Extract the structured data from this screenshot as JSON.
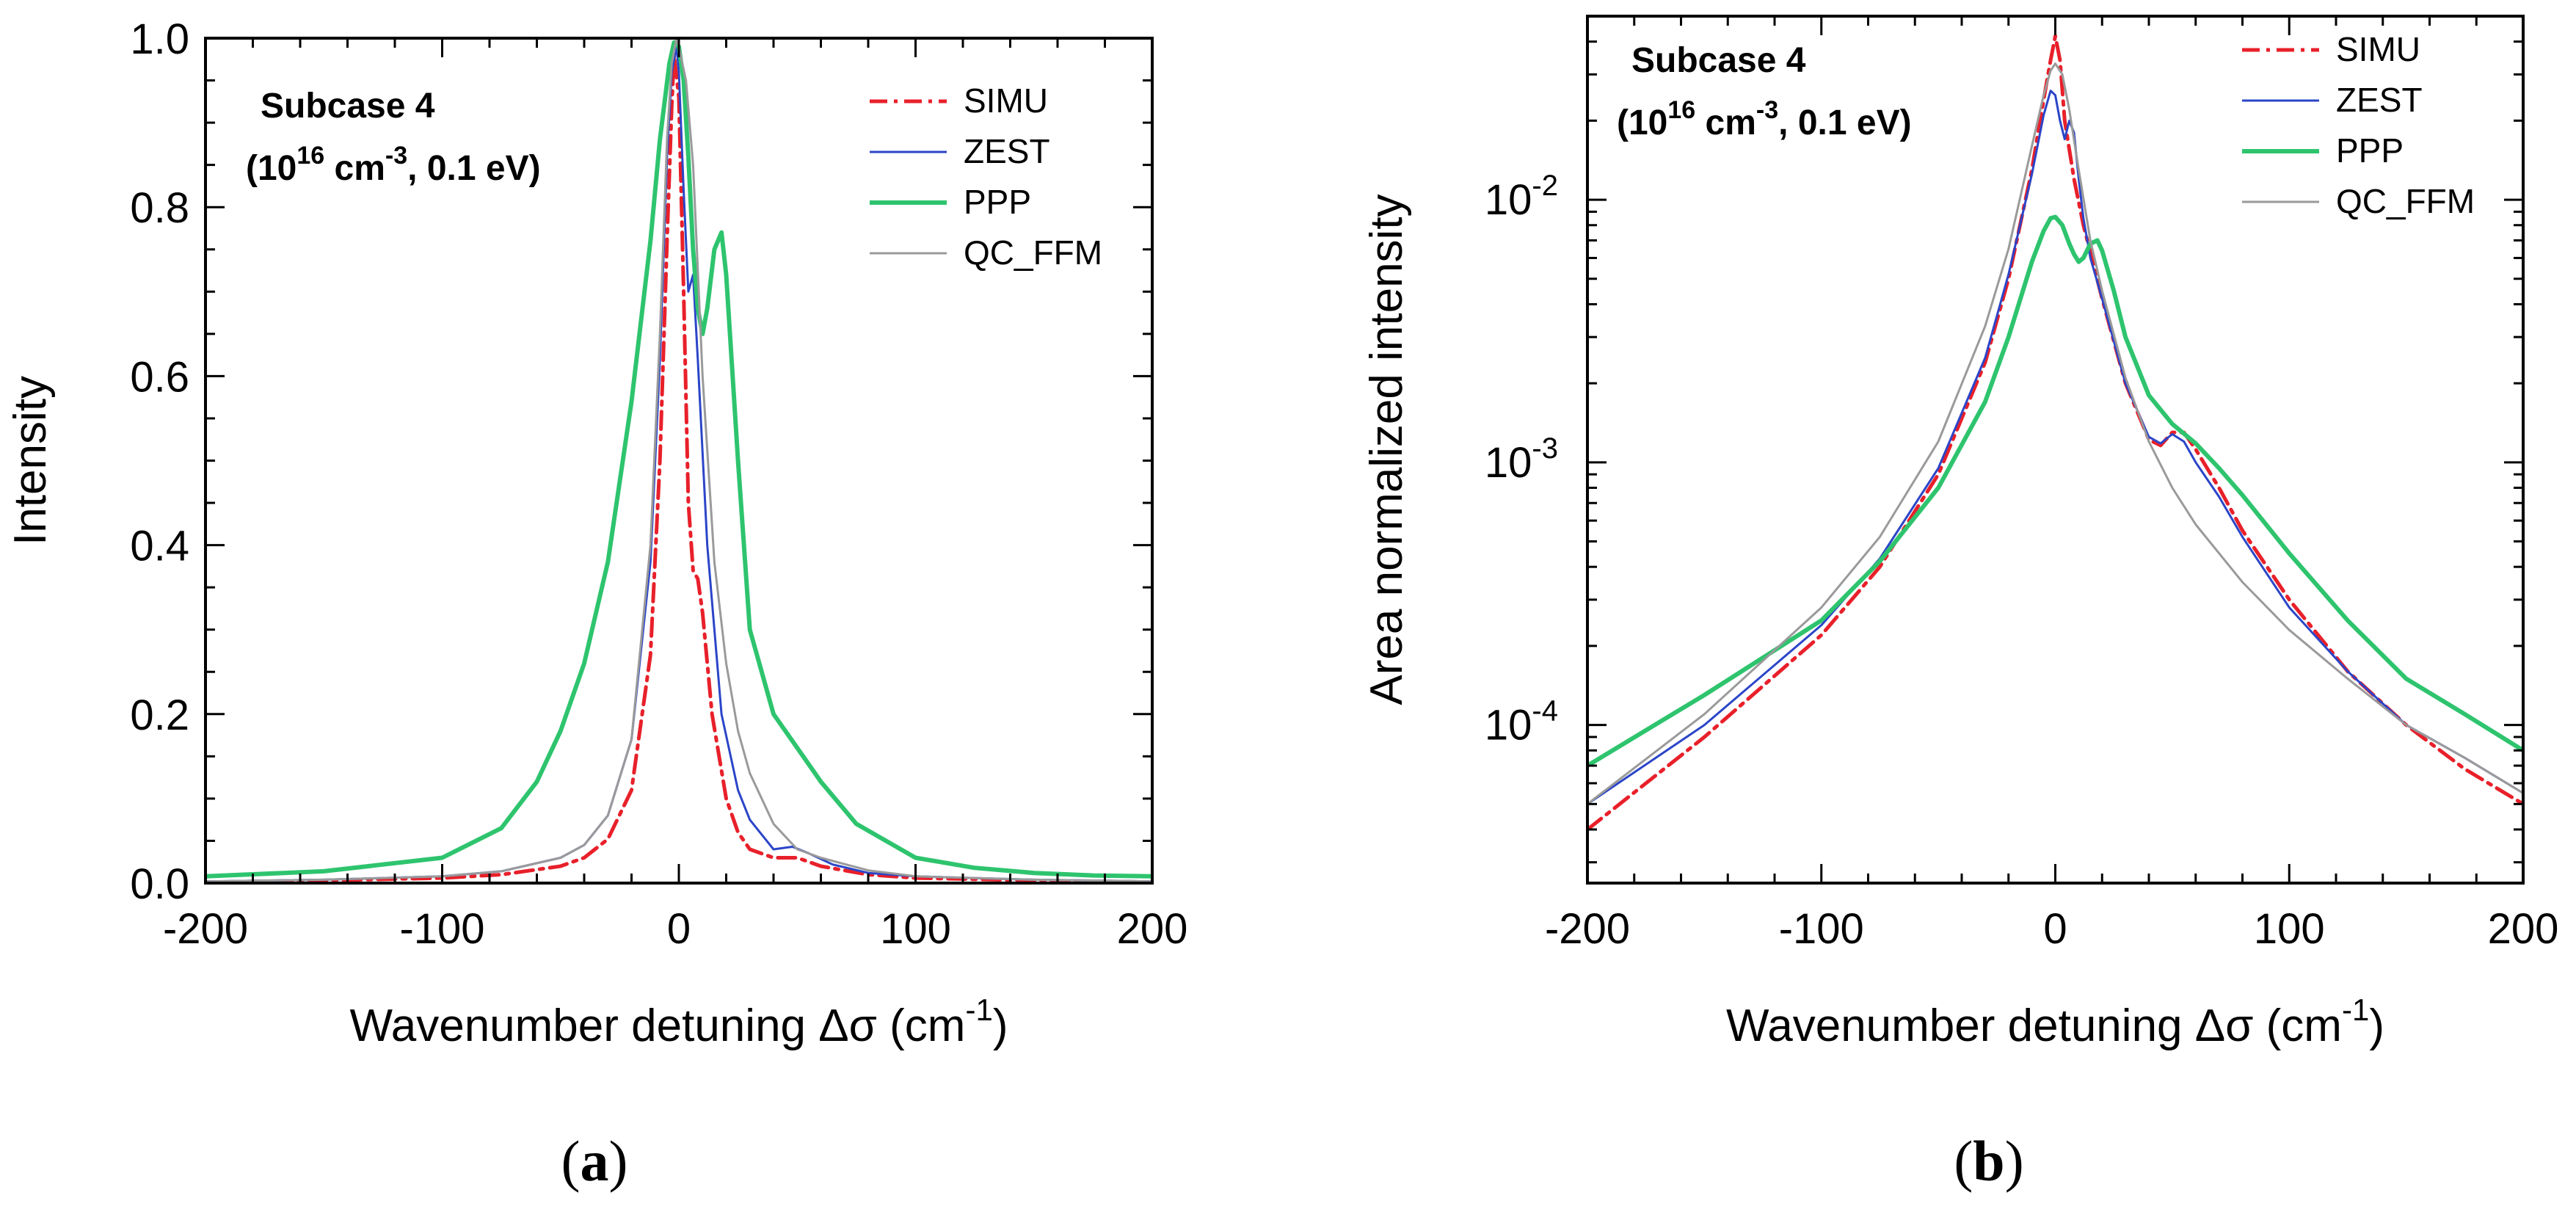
{
  "figure": {
    "caption_a": "(a)",
    "caption_b": "(b)"
  },
  "colors": {
    "SIMU": "#e8202a",
    "ZEST": "#2b45c8",
    "PPP": "#2ec46e",
    "QC_FFM": "#9a9a9a",
    "axis": "#000000"
  },
  "chart_data": [
    {
      "id": "a",
      "type": "line",
      "yscale": "linear",
      "title": "",
      "annotation_title": "Subcase 4",
      "annotation_params": {
        "base": "10",
        "exp1": "16",
        "unit1": " cm",
        "exp2": "-3",
        "rest": ", 0.1 eV)",
        "open": "("
      },
      "xlabel": "Wavenumber detuning Δσ (cm",
      "xlabel_sup": "-1",
      "xlabel_close": ")",
      "ylabel": "Intensity",
      "xlim": [
        -200,
        200
      ],
      "ylim": [
        0,
        1.0
      ],
      "xticks": [
        -200,
        -100,
        0,
        100,
        200
      ],
      "xtick_labels": [
        "-200",
        "-100",
        "0",
        "100",
        "200"
      ],
      "yticks": [
        0.0,
        0.2,
        0.4,
        0.6,
        0.8,
        1.0
      ],
      "ytick_labels": [
        "0.0",
        "0.2",
        "0.4",
        "0.6",
        "0.8",
        "1.0"
      ],
      "legend_position": "top-right",
      "series": [
        {
          "name": "SIMU",
          "style": "dashdot",
          "color": "#e8202a",
          "x": [
            -200,
            -150,
            -100,
            -75,
            -50,
            -40,
            -30,
            -20,
            -12,
            -8,
            -5,
            -3,
            -2,
            0,
            2,
            4,
            6,
            8,
            10,
            14,
            20,
            25,
            30,
            40,
            50,
            60,
            80,
            100,
            150,
            200
          ],
          "y": [
            0.001,
            0.003,
            0.006,
            0.01,
            0.02,
            0.03,
            0.052,
            0.11,
            0.27,
            0.5,
            0.76,
            0.92,
            0.98,
            0.93,
            0.7,
            0.45,
            0.37,
            0.36,
            0.32,
            0.2,
            0.1,
            0.06,
            0.04,
            0.03,
            0.03,
            0.02,
            0.01,
            0.006,
            0.003,
            0.001
          ]
        },
        {
          "name": "ZEST",
          "style": "solid",
          "color": "#2b45c8",
          "x": [
            -200,
            -150,
            -100,
            -75,
            -50,
            -40,
            -30,
            -20,
            -12,
            -8,
            -5,
            -3,
            -1,
            0,
            2,
            4,
            6,
            8,
            12,
            18,
            25,
            30,
            40,
            48,
            55,
            65,
            80,
            100,
            150,
            200
          ],
          "y": [
            0.002,
            0.004,
            0.008,
            0.014,
            0.03,
            0.045,
            0.08,
            0.17,
            0.38,
            0.62,
            0.86,
            0.96,
            0.99,
            0.96,
            0.82,
            0.7,
            0.72,
            0.62,
            0.4,
            0.2,
            0.11,
            0.075,
            0.04,
            0.043,
            0.035,
            0.022,
            0.012,
            0.008,
            0.004,
            0.002
          ]
        },
        {
          "name": "PPP",
          "style": "solid",
          "color": "#2ec46e",
          "x": [
            -200,
            -150,
            -100,
            -75,
            -60,
            -50,
            -40,
            -30,
            -20,
            -12,
            -8,
            -4,
            -2,
            0,
            2,
            4,
            6,
            8,
            10,
            12,
            15,
            18,
            20,
            25,
            30,
            40,
            50,
            60,
            75,
            100,
            125,
            150,
            175,
            200
          ],
          "y": [
            0.008,
            0.014,
            0.03,
            0.065,
            0.12,
            0.18,
            0.26,
            0.38,
            0.57,
            0.76,
            0.88,
            0.97,
            0.995,
            0.99,
            0.95,
            0.86,
            0.75,
            0.68,
            0.65,
            0.68,
            0.75,
            0.77,
            0.72,
            0.5,
            0.3,
            0.2,
            0.16,
            0.12,
            0.07,
            0.03,
            0.018,
            0.012,
            0.009,
            0.008
          ]
        },
        {
          "name": "QC_FFM",
          "style": "solid",
          "color": "#9a9a9a",
          "x": [
            -200,
            -150,
            -100,
            -75,
            -50,
            -40,
            -30,
            -20,
            -12,
            -8,
            -5,
            -3,
            -1,
            0,
            3,
            6,
            10,
            15,
            20,
            25,
            30,
            40,
            50,
            60,
            80,
            100,
            150,
            200
          ],
          "y": [
            0.002,
            0.004,
            0.008,
            0.014,
            0.03,
            0.045,
            0.08,
            0.17,
            0.4,
            0.65,
            0.88,
            0.97,
            1.0,
            0.99,
            0.95,
            0.85,
            0.6,
            0.38,
            0.26,
            0.18,
            0.13,
            0.07,
            0.04,
            0.03,
            0.015,
            0.008,
            0.004,
            0.002
          ]
        }
      ]
    },
    {
      "id": "b",
      "type": "line",
      "yscale": "log",
      "title": "",
      "annotation_title": "Subcase 4",
      "annotation_params": {
        "base": "10",
        "exp1": "16",
        "unit1": " cm",
        "exp2": "-3",
        "rest": ", 0.1 eV)",
        "open": "("
      },
      "xlabel": "Wavenumber detuning Δσ (cm",
      "xlabel_sup": "-1",
      "xlabel_close": ")",
      "ylabel": "Area normalized intensity",
      "xlim": [
        -200,
        200
      ],
      "ylim": [
        2.5e-05,
        0.05
      ],
      "xticks": [
        -200,
        -100,
        0,
        100,
        200
      ],
      "xtick_labels": [
        "-200",
        "-100",
        "0",
        "100",
        "200"
      ],
      "yticks": [
        0.0001,
        0.001,
        0.01
      ],
      "ytick_labels": [
        {
          "base": "10",
          "exp": "-4"
        },
        {
          "base": "10",
          "exp": "-3"
        },
        {
          "base": "10",
          "exp": "-2"
        }
      ],
      "legend_position": "top-right",
      "series": [
        {
          "name": "SIMU",
          "style": "dashdot",
          "color": "#e8202a",
          "x": [
            -200,
            -150,
            -100,
            -75,
            -50,
            -30,
            -20,
            -10,
            -5,
            -2,
            0,
            2,
            4,
            8,
            12,
            20,
            30,
            40,
            45,
            50,
            55,
            60,
            70,
            80,
            100,
            125,
            150,
            175,
            200
          ],
          "y": [
            4e-05,
            9e-05,
            0.00022,
            0.0004,
            0.0009,
            0.0024,
            0.005,
            0.013,
            0.024,
            0.034,
            0.042,
            0.034,
            0.02,
            0.012,
            0.008,
            0.0042,
            0.002,
            0.00122,
            0.00116,
            0.0013,
            0.0013,
            0.00112,
            0.0008,
            0.00055,
            0.0003,
            0.00016,
            0.0001,
            6.8e-05,
            5e-05
          ]
        },
        {
          "name": "ZEST",
          "style": "solid",
          "color": "#2b45c8",
          "x": [
            -200,
            -150,
            -100,
            -75,
            -50,
            -30,
            -20,
            -10,
            -5,
            -2,
            0,
            2,
            4,
            6,
            8,
            10,
            12,
            15,
            20,
            30,
            40,
            45,
            50,
            55,
            60,
            70,
            80,
            100,
            125,
            150,
            175,
            200
          ],
          "y": [
            5e-05,
            0.0001,
            0.00024,
            0.00043,
            0.00095,
            0.0025,
            0.0052,
            0.0125,
            0.021,
            0.026,
            0.025,
            0.02,
            0.017,
            0.02,
            0.018,
            0.012,
            0.0085,
            0.006,
            0.0042,
            0.002,
            0.00125,
            0.00118,
            0.00128,
            0.0012,
            0.001,
            0.00074,
            0.00052,
            0.00028,
            0.00016,
            0.0001,
            7.5e-05,
            5.5e-05
          ]
        },
        {
          "name": "PPP",
          "style": "solid",
          "color": "#2ec46e",
          "x": [
            -200,
            -150,
            -100,
            -75,
            -50,
            -30,
            -20,
            -10,
            -5,
            -2,
            0,
            3,
            6,
            8,
            10,
            12,
            15,
            18,
            20,
            25,
            30,
            40,
            50,
            60,
            70,
            80,
            100,
            125,
            150,
            175,
            200
          ],
          "y": [
            7e-05,
            0.00013,
            0.00025,
            0.00042,
            0.0008,
            0.0017,
            0.003,
            0.0058,
            0.0076,
            0.0085,
            0.0086,
            0.008,
            0.0068,
            0.0062,
            0.0058,
            0.006,
            0.0068,
            0.007,
            0.0064,
            0.0045,
            0.003,
            0.0018,
            0.0014,
            0.00118,
            0.00095,
            0.00075,
            0.00045,
            0.00025,
            0.00015,
            0.00011,
            8e-05
          ]
        },
        {
          "name": "QC_FFM",
          "style": "solid",
          "color": "#9a9a9a",
          "x": [
            -200,
            -150,
            -100,
            -75,
            -50,
            -30,
            -20,
            -10,
            -5,
            -2,
            0,
            3,
            6,
            10,
            15,
            20,
            30,
            40,
            50,
            60,
            80,
            100,
            125,
            150,
            175,
            200
          ],
          "y": [
            5e-05,
            0.00011,
            0.00028,
            0.00052,
            0.0012,
            0.0033,
            0.0065,
            0.016,
            0.025,
            0.031,
            0.033,
            0.03,
            0.022,
            0.013,
            0.007,
            0.0045,
            0.0021,
            0.0012,
            0.0008,
            0.00058,
            0.00035,
            0.00023,
            0.00015,
            0.0001,
            7.5e-05,
            5.5e-05
          ]
        }
      ]
    }
  ]
}
